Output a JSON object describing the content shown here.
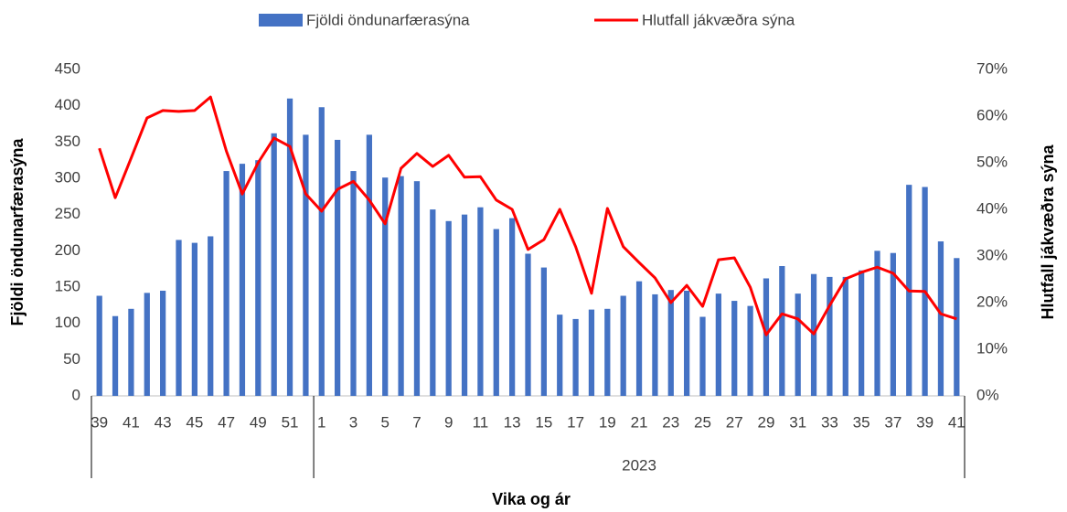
{
  "chart_data": {
    "type": "bar_line",
    "categories": [
      "39",
      null,
      "41",
      null,
      "43",
      null,
      "45",
      null,
      "47",
      null,
      "49",
      null,
      "51",
      null,
      "1",
      null,
      "3",
      null,
      "5",
      null,
      "7",
      null,
      "9",
      null,
      "11",
      null,
      "13",
      null,
      "15",
      null,
      "17",
      null,
      "19",
      null,
      "21",
      null,
      "23",
      null,
      "25",
      null,
      "27",
      null,
      "29",
      null,
      "31",
      null,
      "33",
      null,
      "35",
      null,
      "37",
      null,
      "39",
      null,
      "41"
    ],
    "groups": [
      {
        "label": null,
        "count": 14
      },
      {
        "label": "2023",
        "count": 41
      }
    ],
    "series": [
      {
        "name": "Fjöldi öndunarfærasýna",
        "type": "bar",
        "color": "#4472c4",
        "values": [
          138,
          110,
          120,
          142,
          145,
          215,
          211,
          220,
          310,
          320,
          325,
          362,
          410,
          360,
          398,
          353,
          310,
          360,
          301,
          303,
          296,
          257,
          241,
          250,
          260,
          230,
          245,
          196,
          177,
          112,
          106,
          119,
          120,
          138,
          158,
          140,
          146,
          145,
          109,
          141,
          131,
          124,
          162,
          179,
          141,
          168,
          164,
          164,
          173,
          200,
          197,
          291,
          288,
          213,
          190
        ]
      },
      {
        "name": "Hlutfall jákvæðra sýna",
        "type": "line",
        "axis": "y2",
        "color": "#ff0000",
        "values": [
          53.1,
          42.5,
          51,
          59.6,
          61.2,
          61,
          61.2,
          64.1,
          52.5,
          43.3,
          50,
          55.3,
          53.5,
          43.3,
          39.6,
          44.3,
          46,
          42,
          36.9,
          48.8,
          52,
          49.2,
          51.6,
          46.9,
          47,
          42,
          40,
          31.4,
          33.5,
          40,
          32,
          22,
          40.2,
          32,
          28.6,
          25.3,
          20,
          23.7,
          19.2,
          29.2,
          29.6,
          23.3,
          13.1,
          17.6,
          16.5,
          13.3,
          19.4,
          25.1,
          26.5,
          27.6,
          26.3,
          22.5,
          22.4,
          17.6,
          16.5
        ]
      }
    ],
    "ylabel": "Fjöldi öndunarfærasýna",
    "y2label": "Hlutfall jákvæðra sýna",
    "xlabel": "Vika og ár",
    "ylim": [
      0,
      450
    ],
    "yticks": [
      0,
      50,
      100,
      150,
      200,
      250,
      300,
      350,
      400,
      450
    ],
    "y2lim": [
      0,
      70
    ],
    "y2ticks": [
      {
        "value": 0,
        "label": "0%"
      },
      {
        "value": 10,
        "label": "10%"
      },
      {
        "value": 20,
        "label": "20%"
      },
      {
        "value": 30,
        "label": "30%"
      },
      {
        "value": 40,
        "label": "40%"
      },
      {
        "value": 50,
        "label": "50%"
      },
      {
        "value": 60,
        "label": "60%"
      },
      {
        "value": 70,
        "label": "70%"
      }
    ],
    "legend": "top",
    "grid": false
  }
}
